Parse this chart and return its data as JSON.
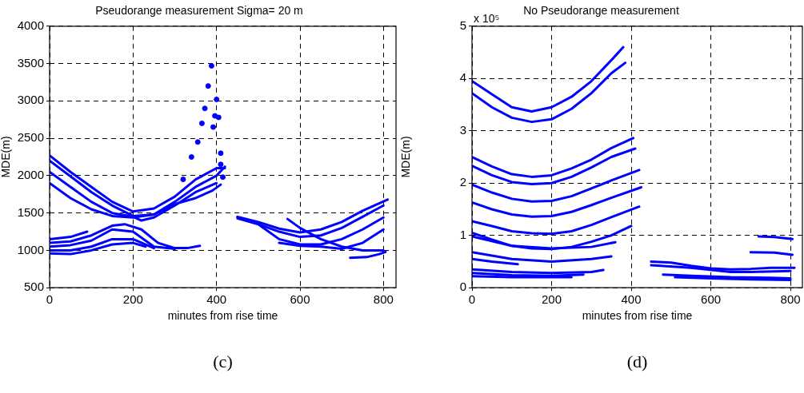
{
  "chart_data": [
    {
      "type": "line",
      "title": "Pseudorange measurement Sigma= 20 m",
      "xlabel": "minutes from rise time",
      "ylabel": "MDE(m)",
      "xlim": [
        0,
        830
      ],
      "ylim": [
        500,
        4000
      ],
      "xticks": [
        0,
        200,
        400,
        600,
        800
      ],
      "yticks": [
        500,
        1000,
        1500,
        2000,
        2500,
        3000,
        3500,
        4000
      ],
      "grid": true,
      "annotations": [
        "(c)"
      ],
      "series": [
        {
          "color": "#0000ff",
          "x": [
            0,
            50,
            100,
            150,
            200,
            250,
            300,
            350,
            400,
            420
          ],
          "values": [
            2270,
            2050,
            1850,
            1650,
            1520,
            1560,
            1720,
            1950,
            2100,
            2100
          ]
        },
        {
          "color": "#0000ff",
          "x": [
            0,
            50,
            100,
            150,
            200,
            250,
            300,
            350,
            400,
            420
          ],
          "values": [
            2200,
            1990,
            1780,
            1600,
            1460,
            1480,
            1650,
            1850,
            2000,
            2120
          ]
        },
        {
          "color": "#0000ff",
          "x": [
            0,
            50,
            100,
            150,
            200,
            220,
            250,
            300,
            350,
            400
          ],
          "values": [
            2050,
            1850,
            1650,
            1500,
            1450,
            1400,
            1440,
            1600,
            1780,
            1900
          ]
        },
        {
          "color": "#0000ff",
          "x": [
            0,
            50,
            100,
            150,
            200,
            250,
            300,
            350,
            390,
            410
          ],
          "values": [
            1900,
            1700,
            1550,
            1460,
            1440,
            1480,
            1620,
            1700,
            1800,
            1880
          ]
        },
        {
          "color": "#0000ff",
          "type": "scatter",
          "marker": "circle",
          "x": [
            320,
            340,
            355,
            365,
            372,
            380,
            388,
            392,
            396,
            400,
            405,
            410,
            410,
            415
          ],
          "values": [
            1950,
            2250,
            2450,
            2700,
            2900,
            3200,
            3470,
            2650,
            2800,
            3020,
            2780,
            2300,
            2150,
            1980
          ]
        },
        {
          "color": "#0000ff",
          "x": [
            0,
            50,
            90
          ],
          "values": [
            1150,
            1180,
            1250
          ]
        },
        {
          "color": "#0000ff",
          "x": [
            0,
            50,
            100,
            150,
            180,
            220,
            260,
            300,
            330,
            360
          ],
          "values": [
            1100,
            1120,
            1200,
            1330,
            1350,
            1280,
            1100,
            1030,
            1030,
            1060
          ]
        },
        {
          "color": "#0000ff",
          "x": [
            0,
            50,
            100,
            150,
            200,
            250,
            300
          ],
          "values": [
            1050,
            1070,
            1130,
            1280,
            1250,
            1050,
            1020
          ]
        },
        {
          "color": "#0000ff",
          "x": [
            0,
            50,
            100,
            150,
            200,
            250
          ],
          "values": [
            1000,
            1000,
            1050,
            1150,
            1150,
            1030
          ]
        },
        {
          "color": "#0000ff",
          "x": [
            0,
            50,
            100,
            150,
            200,
            230
          ],
          "values": [
            960,
            950,
            1000,
            1080,
            1100,
            1050
          ]
        },
        {
          "color": "#0000ff",
          "x": [
            450,
            500,
            550,
            600,
            650,
            700,
            750,
            810
          ],
          "values": [
            1450,
            1380,
            1290,
            1240,
            1280,
            1380,
            1530,
            1680
          ]
        },
        {
          "color": "#0000ff",
          "x": [
            450,
            500,
            550,
            600,
            650,
            700,
            750,
            800
          ],
          "values": [
            1430,
            1350,
            1250,
            1180,
            1200,
            1300,
            1450,
            1600
          ]
        },
        {
          "color": "#0000ff",
          "x": [
            500,
            550,
            600,
            650,
            700,
            750,
            800
          ],
          "values": [
            1350,
            1150,
            1080,
            1080,
            1150,
            1280,
            1440
          ]
        },
        {
          "color": "#0000ff",
          "x": [
            570,
            600,
            650,
            700,
            750,
            800
          ],
          "values": [
            1420,
            1300,
            1150,
            1050,
            1000,
            1000
          ]
        },
        {
          "color": "#0000ff",
          "x": [
            550,
            600,
            650,
            700,
            750,
            800
          ],
          "values": [
            1100,
            1060,
            1050,
            1020,
            1100,
            1280
          ]
        },
        {
          "color": "#0000ff",
          "x": [
            720,
            760,
            790,
            805
          ],
          "values": [
            900,
            910,
            950,
            980
          ]
        }
      ]
    },
    {
      "type": "line",
      "title": "No Pseudorange measurement",
      "xlabel": "minutes from rise time",
      "ylabel": "MDE(m)",
      "xlim": [
        0,
        830
      ],
      "ylim": [
        0,
        5
      ],
      "xticks": [
        0,
        200,
        400,
        600,
        800
      ],
      "yticks": [
        0,
        1,
        2,
        3,
        4,
        5
      ],
      "grid": true,
      "annotations": [
        "x 10⁵",
        "(d)"
      ],
      "series": [
        {
          "color": "#0000ff",
          "x": [
            0,
            50,
            100,
            150,
            200,
            250,
            300,
            350,
            380
          ],
          "values": [
            3.95,
            3.7,
            3.45,
            3.37,
            3.45,
            3.65,
            3.95,
            4.35,
            4.6
          ]
        },
        {
          "color": "#0000ff",
          "x": [
            0,
            50,
            100,
            150,
            200,
            250,
            300,
            350,
            385
          ],
          "values": [
            3.72,
            3.45,
            3.25,
            3.17,
            3.22,
            3.42,
            3.72,
            4.1,
            4.3
          ]
        },
        {
          "color": "#0000ff",
          "x": [
            0,
            50,
            100,
            150,
            200,
            250,
            300,
            350,
            405
          ],
          "values": [
            2.5,
            2.32,
            2.17,
            2.12,
            2.15,
            2.28,
            2.45,
            2.67,
            2.86
          ]
        },
        {
          "color": "#0000ff",
          "x": [
            0,
            50,
            100,
            150,
            200,
            250,
            300,
            350,
            410
          ],
          "values": [
            2.33,
            2.15,
            2.02,
            1.98,
            2.0,
            2.12,
            2.3,
            2.5,
            2.66
          ]
        },
        {
          "color": "#0000ff",
          "x": [
            0,
            50,
            100,
            150,
            200,
            250,
            300,
            350,
            420
          ],
          "values": [
            1.97,
            1.82,
            1.7,
            1.65,
            1.66,
            1.75,
            1.9,
            2.05,
            2.25
          ]
        },
        {
          "color": "#0000ff",
          "x": [
            0,
            50,
            100,
            150,
            200,
            250,
            300,
            350,
            425
          ],
          "values": [
            1.63,
            1.5,
            1.4,
            1.36,
            1.37,
            1.45,
            1.58,
            1.72,
            1.92
          ]
        },
        {
          "color": "#0000ff",
          "x": [
            0,
            50,
            100,
            150,
            200,
            250,
            300,
            350,
            420
          ],
          "values": [
            1.27,
            1.18,
            1.08,
            1.04,
            1.03,
            1.08,
            1.2,
            1.35,
            1.55
          ]
        },
        {
          "color": "#0000ff",
          "x": [
            0,
            50,
            100,
            150,
            200,
            250,
            300,
            350,
            400
          ],
          "values": [
            1.05,
            0.92,
            0.8,
            0.75,
            0.74,
            0.78,
            0.88,
            1.0,
            1.18
          ]
        },
        {
          "color": "#0000ff",
          "x": [
            0,
            100,
            200,
            300,
            360
          ],
          "values": [
            0.98,
            0.8,
            0.75,
            0.78,
            0.87
          ]
        },
        {
          "color": "#0000ff",
          "x": [
            0,
            100,
            200,
            300,
            350
          ],
          "values": [
            0.68,
            0.55,
            0.5,
            0.55,
            0.6
          ]
        },
        {
          "color": "#0000ff",
          "x": [
            0,
            50,
            115
          ],
          "values": [
            0.55,
            0.5,
            0.45
          ]
        },
        {
          "color": "#0000ff",
          "x": [
            0,
            100,
            200,
            300,
            330
          ],
          "values": [
            0.35,
            0.3,
            0.28,
            0.3,
            0.34
          ]
        },
        {
          "color": "#0000ff",
          "x": [
            0,
            100,
            200,
            280
          ],
          "values": [
            0.28,
            0.24,
            0.23,
            0.25
          ]
        },
        {
          "color": "#0000ff",
          "x": [
            0,
            100,
            200,
            250
          ],
          "values": [
            0.22,
            0.2,
            0.2,
            0.2
          ]
        },
        {
          "color": "#0000ff",
          "x": [
            450,
            500,
            550,
            600,
            650,
            700,
            750,
            810
          ],
          "values": [
            0.5,
            0.48,
            0.42,
            0.37,
            0.35,
            0.36,
            0.38,
            0.38
          ]
        },
        {
          "color": "#0000ff",
          "x": [
            450,
            550,
            650,
            700,
            800
          ],
          "values": [
            0.43,
            0.38,
            0.3,
            0.3,
            0.32
          ]
        },
        {
          "color": "#0000ff",
          "x": [
            480,
            550,
            650,
            750,
            800
          ],
          "values": [
            0.25,
            0.23,
            0.2,
            0.19,
            0.18
          ]
        },
        {
          "color": "#0000ff",
          "x": [
            510,
            600,
            700,
            800
          ],
          "values": [
            0.2,
            0.18,
            0.16,
            0.15
          ]
        },
        {
          "color": "#0000ff",
          "x": [
            720,
            760,
            805
          ],
          "values": [
            0.98,
            0.97,
            0.93
          ]
        },
        {
          "color": "#0000ff",
          "x": [
            700,
            760,
            805
          ],
          "values": [
            0.68,
            0.67,
            0.63
          ]
        }
      ]
    }
  ]
}
